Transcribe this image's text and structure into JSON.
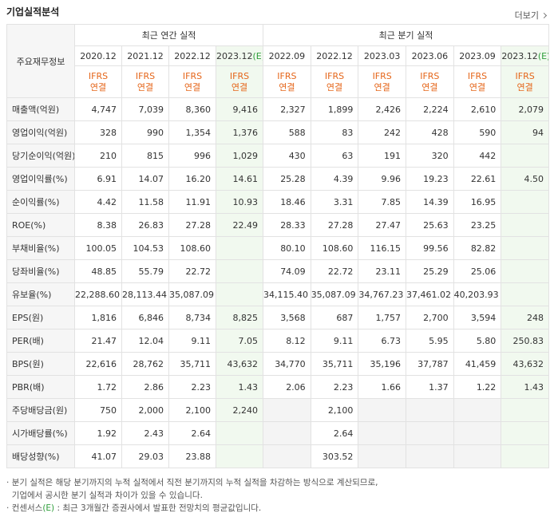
{
  "header": {
    "title": "기업실적분석",
    "more": "더보기"
  },
  "table": {
    "corner": "주요재무정보",
    "groups_header": [
      "최근 연간 실적",
      "최근 분기 실적"
    ],
    "columns": [
      {
        "period": "2020.12",
        "estimate": null,
        "standard": "IFRS",
        "basis": "연결"
      },
      {
        "period": "2021.12",
        "estimate": null,
        "standard": "IFRS",
        "basis": "연결"
      },
      {
        "period": "2022.12",
        "estimate": null,
        "standard": "IFRS",
        "basis": "연결"
      },
      {
        "period": "2023.12",
        "estimate": "(E)",
        "standard": "IFRS",
        "basis": "연결"
      },
      {
        "period": "2022.09",
        "estimate": null,
        "standard": "IFRS",
        "basis": "연결"
      },
      {
        "period": "2022.12",
        "estimate": null,
        "standard": "IFRS",
        "basis": "연결"
      },
      {
        "period": "2023.03",
        "estimate": null,
        "standard": "IFRS",
        "basis": "연결"
      },
      {
        "period": "2023.06",
        "estimate": null,
        "standard": "IFRS",
        "basis": "연결"
      },
      {
        "period": "2023.09",
        "estimate": null,
        "standard": "IFRS",
        "basis": "연결"
      },
      {
        "period": "2023.12",
        "estimate": "(E)",
        "standard": "IFRS",
        "basis": "연결"
      }
    ],
    "groups": [
      [
        {
          "label": "매출액(억원)",
          "cells": [
            "4,747",
            "7,039",
            "8,360",
            "9,416",
            "2,327",
            "1,899",
            "2,426",
            "2,224",
            "2,610",
            "2,079"
          ]
        },
        {
          "label": "영업이익(억원)",
          "cells": [
            "328",
            "990",
            "1,354",
            "1,376",
            "588",
            "83",
            "242",
            "428",
            "590",
            "94"
          ]
        },
        {
          "label": "당기순이익(억원)",
          "cells": [
            "210",
            "815",
            "996",
            "1,029",
            "430",
            "63",
            "191",
            "320",
            "442",
            null
          ]
        }
      ],
      [
        {
          "label": "영업이익률(%)",
          "cells": [
            "6.91",
            "14.07",
            "16.20",
            "14.61",
            "25.28",
            "4.39",
            "9.96",
            "19.23",
            "22.61",
            "4.50"
          ]
        },
        {
          "label": "순이익률(%)",
          "cells": [
            "4.42",
            "11.58",
            "11.91",
            "10.93",
            "18.46",
            "3.31",
            "7.85",
            "14.39",
            "16.95",
            null
          ]
        },
        {
          "label": "ROE(%)",
          "cells": [
            "8.38",
            "26.83",
            "27.28",
            "22.49",
            "28.33",
            "27.28",
            "27.47",
            "25.63",
            "23.25",
            null
          ]
        }
      ],
      [
        {
          "label": "부채비율(%)",
          "cells": [
            "100.05",
            "104.53",
            "108.60",
            null,
            "80.10",
            "108.60",
            "116.15",
            "99.56",
            "82.82",
            null
          ]
        },
        {
          "label": "당좌비율(%)",
          "cells": [
            "48.85",
            "55.79",
            "22.72",
            null,
            "74.09",
            "22.72",
            "23.11",
            "25.29",
            "25.06",
            null
          ]
        },
        {
          "label": "유보율(%)",
          "cells": [
            "22,288.60",
            "28,113.44",
            "35,087.09",
            null,
            "34,115.40",
            "35,087.09",
            "34,767.23",
            "37,461.02",
            "40,203.93",
            null
          ]
        }
      ],
      [
        {
          "label": "EPS(원)",
          "cells": [
            "1,816",
            "6,846",
            "8,734",
            "8,825",
            "3,568",
            "687",
            "1,757",
            "2,700",
            "3,594",
            "248"
          ]
        },
        {
          "label": "PER(배)",
          "cells": [
            "21.47",
            "12.04",
            "9.11",
            "7.05",
            "8.12",
            "9.11",
            "6.73",
            "5.95",
            "5.80",
            "250.83"
          ]
        },
        {
          "label": "BPS(원)",
          "cells": [
            "22,616",
            "28,762",
            "35,711",
            "43,632",
            "34,770",
            "35,711",
            "35,196",
            "37,787",
            "41,459",
            "43,632"
          ]
        },
        {
          "label": "PBR(배)",
          "cells": [
            "1.72",
            "2.86",
            "2.23",
            "1.43",
            "2.06",
            "2.23",
            "1.66",
            "1.37",
            "1.22",
            "1.43"
          ]
        }
      ],
      [
        {
          "label": "주당배당금(원)",
          "cells": [
            "750",
            "2,000",
            "2,100",
            "2,240",
            null,
            "2,100",
            null,
            null,
            null,
            null
          ]
        },
        {
          "label": "시가배당률(%)",
          "cells": [
            "1.92",
            "2.43",
            "2.64",
            null,
            null,
            "2.64",
            null,
            null,
            null,
            null
          ]
        },
        {
          "label": "배당성향(%)",
          "cells": [
            "41.07",
            "29.03",
            "23.88",
            null,
            null,
            "303.52",
            null,
            null,
            null,
            null
          ]
        }
      ]
    ]
  },
  "notes": {
    "first": [
      "분기 실적은 해당 분기까지의 누적 실적에서 직전 분기까지의 누적 실적을 차감하는 방식으로 계산되므로,",
      "기업에서 공시한 분기 실적과 차이가 있을 수 있습니다."
    ],
    "second": {
      "prefix": "컨센서스",
      "estimate": "(E)",
      "text": ": 최근 3개월간 증권사에서 발표한 전망치의 평균값입니다."
    }
  }
}
